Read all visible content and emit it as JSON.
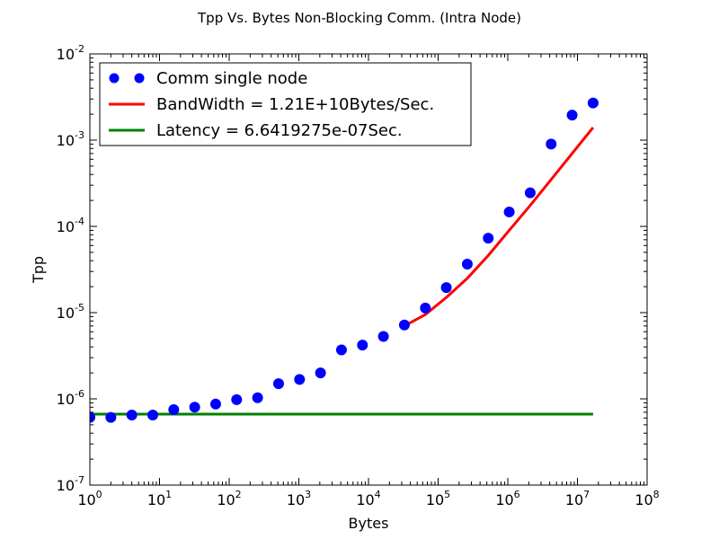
{
  "chart_data": {
    "type": "line",
    "title": "Tpp Vs. Bytes Non-Blocking Comm. (Intra Node)",
    "xlabel": "Bytes",
    "ylabel": "Tpp",
    "xscale": "log",
    "yscale": "log",
    "xlim": [
      1,
      100000000
    ],
    "ylim": [
      1e-07,
      0.01
    ],
    "grid": false,
    "legend_position": "top-left",
    "x_ticks": [
      {
        "base": "10",
        "exp": "0",
        "value": 1
      },
      {
        "base": "10",
        "exp": "1",
        "value": 10
      },
      {
        "base": "10",
        "exp": "2",
        "value": 100
      },
      {
        "base": "10",
        "exp": "3",
        "value": 1000
      },
      {
        "base": "10",
        "exp": "4",
        "value": 10000
      },
      {
        "base": "10",
        "exp": "5",
        "value": 100000
      },
      {
        "base": "10",
        "exp": "6",
        "value": 1000000
      },
      {
        "base": "10",
        "exp": "7",
        "value": 10000000
      },
      {
        "base": "10",
        "exp": "8",
        "value": 100000000
      }
    ],
    "y_ticks": [
      {
        "base": "10",
        "exp": "-7",
        "value": 1e-07
      },
      {
        "base": "10",
        "exp": "-6",
        "value": 1e-06
      },
      {
        "base": "10",
        "exp": "-5",
        "value": 1e-05
      },
      {
        "base": "10",
        "exp": "-4",
        "value": 0.0001
      },
      {
        "base": "10",
        "exp": "-3",
        "value": 0.001
      },
      {
        "base": "10",
        "exp": "-2",
        "value": 0.01
      }
    ],
    "series": [
      {
        "name": "Comm single node",
        "style": "markers",
        "color": "#0000ff",
        "x": [
          1,
          2,
          4,
          8,
          16,
          32,
          64,
          128,
          256,
          512,
          1024,
          2048,
          4096,
          8192,
          16384,
          32768,
          65536,
          131072,
          262144,
          524288,
          1048576,
          2097152,
          4194304,
          8388608,
          16777216
        ],
        "y": [
          6.1e-07,
          6.1e-07,
          6.5e-07,
          6.5e-07,
          7.5e-07,
          8e-07,
          8.7e-07,
          9.8e-07,
          1.03e-06,
          1.5e-06,
          1.68e-06,
          2e-06,
          3.7e-06,
          4.2e-06,
          5.3e-06,
          7.2e-06,
          1.13e-05,
          1.95e-05,
          3.65e-05,
          7.3e-05,
          0.000147,
          0.000245,
          0.0009,
          0.00195,
          0.0027
        ]
      },
      {
        "name": "BandWidth = 1.21E+10Bytes/Sec.",
        "style": "line",
        "color": "#ff0000",
        "x": [
          32768,
          65536,
          131072,
          262144,
          524288,
          1048576,
          2097152,
          4194304,
          8388608,
          16777216
        ],
        "y": [
          7e-06,
          9.5e-06,
          1.5e-05,
          2.5e-05,
          4.6e-05,
          9e-05,
          0.000175,
          0.00035,
          0.0007,
          0.0014
        ]
      },
      {
        "name": "Latency = 6.6419275e-07Sec.",
        "style": "line",
        "color": "#008000",
        "x": [
          1,
          16777216
        ],
        "y": [
          6.6419275e-07,
          6.6419275e-07
        ]
      }
    ]
  }
}
